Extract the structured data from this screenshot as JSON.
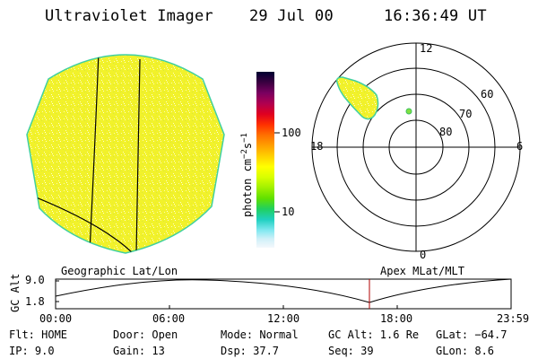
{
  "header": {
    "instrument": "Ultraviolet Imager",
    "date": "29 Jul 00",
    "time": "16:36:49 UT"
  },
  "colorbar": {
    "label_main": "photon cm",
    "label_exp1": "−2",
    "label_mid": "s",
    "label_exp2": "−1",
    "ticks": [
      "100",
      "10"
    ],
    "colors": [
      "#000030",
      "#3a0040",
      "#7a0060",
      "#b00050",
      "#e00020",
      "#ff3000",
      "#ff7000",
      "#ffa000",
      "#ffd000",
      "#ffff00",
      "#d8ff00",
      "#a0f000",
      "#60e000",
      "#20d060",
      "#20d0c0",
      "#80e8f0",
      "#d0f0f8",
      "#f4f8fc"
    ]
  },
  "polar_plot": {
    "labels": {
      "mlt_top": "12",
      "mlt_left": "18",
      "mlt_right": "6",
      "mlt_bottom": "0",
      "lat_60": "60",
      "lat_70": "70",
      "lat_80": "80"
    }
  },
  "timeline": {
    "axis_label": "GC Alt",
    "y_top": "9.0",
    "y_bottom": "1.8",
    "left_title": "Geographic Lat/Lon",
    "right_title": "Apex MLat/MLT",
    "x_ticks": [
      "00:00",
      "06:00",
      "12:00",
      "18:00",
      "23:59"
    ],
    "marker_color": "#b00000"
  },
  "info": {
    "flt": "Flt: HOME",
    "ip": "IP:  9.0",
    "door": "Door: Open",
    "gain": "Gain: 13",
    "mode": "Mode: Normal",
    "dsp": "Dsp:   37.7",
    "gc_alt": "GC Alt: 1.6 Re",
    "seq": "Seq: 39",
    "glat": "GLat: −64.7",
    "glon": "GLon:   8.6"
  }
}
